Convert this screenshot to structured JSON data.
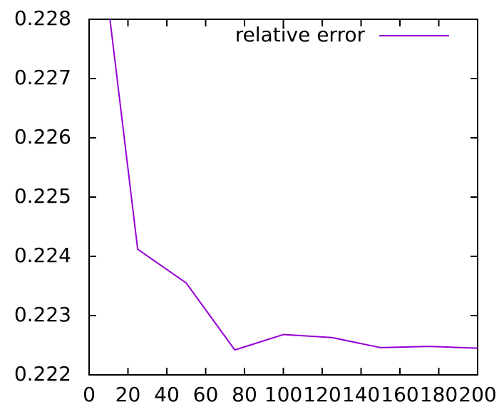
{
  "chart_data": {
    "type": "line",
    "title": "",
    "xlabel": "",
    "ylabel": "",
    "xlim": [
      0,
      200
    ],
    "ylim": [
      0.222,
      0.228
    ],
    "x_ticks": [
      0,
      20,
      40,
      60,
      80,
      100,
      120,
      140,
      160,
      180,
      200
    ],
    "y_ticks": [
      0.222,
      0.223,
      0.224,
      0.225,
      0.226,
      0.227,
      0.228
    ],
    "x_tick_labels": [
      "0",
      "20",
      "40",
      "60",
      "80",
      "100",
      "120",
      "140",
      "160",
      "180",
      "200"
    ],
    "y_tick_labels": [
      "0.222",
      "0.223",
      "0.224",
      "0.225",
      "0.226",
      "0.227",
      "0.228"
    ],
    "grid": false,
    "legend_position": "top-right",
    "series": [
      {
        "name": "relative error",
        "color": "#9400d3",
        "x": [
          10,
          25,
          50,
          75,
          100,
          125,
          150,
          175,
          200
        ],
        "y": [
          0.2282,
          0.22412,
          0.22355,
          0.22242,
          0.22268,
          0.22263,
          0.22246,
          0.22248,
          0.22245
        ]
      }
    ]
  }
}
